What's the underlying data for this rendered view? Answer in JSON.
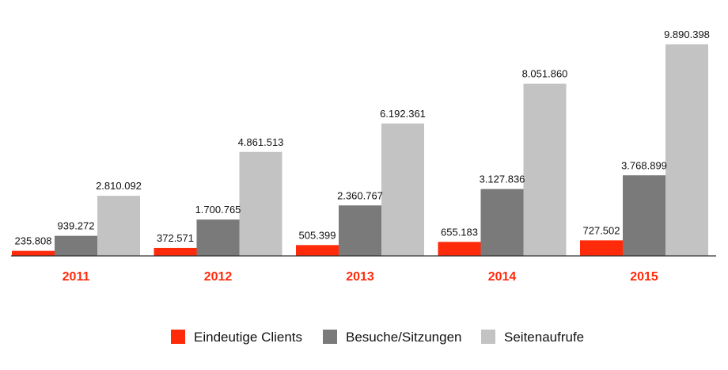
{
  "chart_data": {
    "type": "bar",
    "categories": [
      "2011",
      "2012",
      "2013",
      "2014",
      "2015"
    ],
    "series": [
      {
        "name": "Eindeutige Clients",
        "color": "#ff2a0a",
        "values": [
          235808,
          372571,
          505399,
          655183,
          727502
        ],
        "labels": [
          "235.808",
          "372.571",
          "505.399",
          "655.183",
          "727.502"
        ]
      },
      {
        "name": "Besuche/Sitzungen",
        "color": "#7a7a7a",
        "values": [
          939272,
          1700765,
          2360767,
          3127836,
          3768899
        ],
        "labels": [
          "939.272",
          "1.700.765",
          "2.360.767",
          "3.127.836",
          "3.768.899"
        ]
      },
      {
        "name": "Seitenaufrufe",
        "color": "#c3c3c3",
        "values": [
          2810092,
          4861513,
          6192361,
          8051860,
          9890398
        ],
        "labels": [
          "2.810.092",
          "4.861.513",
          "6.192.361",
          "8.051.860",
          "9.890.398"
        ]
      }
    ],
    "ylim": [
      0,
      9890398
    ],
    "grid": false,
    "legend_position": "bottom",
    "category_label_color": "#ff2a0a"
  }
}
